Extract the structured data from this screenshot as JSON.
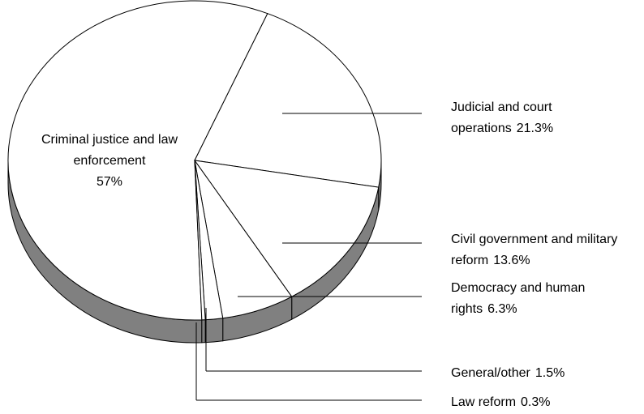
{
  "chart_data": {
    "type": "pie",
    "categories": [
      "Criminal justice and law enforcement",
      "Judicial and court operations",
      "Civil government and military reform",
      "Democracy and human rights",
      "General/other",
      "Law reform"
    ],
    "values": [
      57,
      21.3,
      13.6,
      6.3,
      1.5,
      0.3
    ],
    "value_labels": [
      "57%",
      "21.3%",
      "13.6%",
      "6.3%",
      "1.5%",
      "0.3%"
    ],
    "top_color": "#ffffff",
    "side_color": "#808080"
  }
}
